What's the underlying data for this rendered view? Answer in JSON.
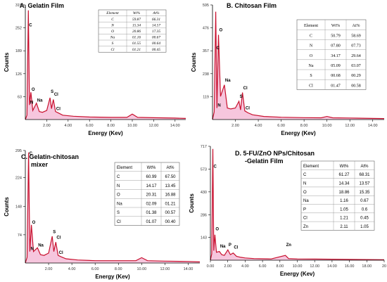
{
  "chart_data": [
    {
      "type": "line",
      "panel_label": "A.",
      "title": "Gelatin  Film",
      "xlabel": "Energy (Kev)",
      "ylabel": "Counts",
      "xlim": [
        0,
        15
      ],
      "ylim": [
        0,
        315
      ],
      "x_ticks": [
        "2.00",
        "4.00",
        "6.00",
        "8.00",
        "10.00",
        "12.00",
        "14.00"
      ],
      "y_ticks": [
        "63",
        "126",
        "189",
        "252",
        "315"
      ],
      "peak_labels": [
        {
          "label": "C",
          "x": 0.28,
          "y": 252
        },
        {
          "label": "N",
          "x": 0.39,
          "y": 40
        },
        {
          "label": "O",
          "x": 0.52,
          "y": 75
        },
        {
          "label": "Na",
          "x": 1.04,
          "y": 45
        },
        {
          "label": "S",
          "x": 2.31,
          "y": 70
        },
        {
          "label": "Cl",
          "x": 2.62,
          "y": 62
        },
        {
          "label": "Cl",
          "x": 2.82,
          "y": 22
        }
      ],
      "series": [
        {
          "x": [
            0.0,
            0.15,
            0.28,
            0.39,
            0.52,
            0.7,
            1.04,
            1.3,
            1.6,
            2.0,
            2.31,
            2.45,
            2.62,
            2.82,
            3.1,
            3.5,
            4.5,
            6.0,
            8.0,
            9.5,
            10.0,
            10.5,
            12.0,
            14.0,
            15.0
          ],
          "values": [
            0,
            12,
            300,
            40,
            75,
            25,
            45,
            22,
            20,
            25,
            60,
            30,
            55,
            22,
            18,
            12,
            9,
            7,
            6,
            6,
            15,
            6,
            5,
            4,
            3
          ]
        }
      ],
      "table": {
        "headers": [
          "Element",
          "Wt%",
          "At%"
        ],
        "rows": [
          [
            "C",
            "59.87",
            "66.31"
          ],
          [
            "N",
            "15.34",
            "14.57"
          ],
          [
            "O",
            "20.86",
            "17.35"
          ],
          [
            "Na",
            "01.16",
            "00.67"
          ],
          [
            "S",
            "01.55",
            "00.64"
          ],
          [
            "Cl",
            "01.21",
            "00.45"
          ]
        ]
      }
    },
    {
      "type": "line",
      "panel_label": "B.",
      "title": "Chitosan Film",
      "xlabel": "Energy (Kev)",
      "ylabel": "Counts",
      "xlim": [
        0,
        15
      ],
      "ylim": [
        0,
        595
      ],
      "x_ticks": [
        "2.00",
        "4.00",
        "6.00",
        "8.00",
        "10.00",
        "12.00",
        "14.00"
      ],
      "y_ticks": [
        "119",
        "238",
        "357",
        "476",
        "595"
      ],
      "peak_labels": [
        {
          "label": "C",
          "x": 0.28,
          "y": 357
        },
        {
          "label": "N",
          "x": 0.39,
          "y": 60
        },
        {
          "label": "O",
          "x": 0.52,
          "y": 450
        },
        {
          "label": "Na",
          "x": 1.04,
          "y": 190
        },
        {
          "label": "S",
          "x": 2.31,
          "y": 105
        },
        {
          "label": "Cl",
          "x": 2.62,
          "y": 150
        },
        {
          "label": "Cl",
          "x": 2.82,
          "y": 45
        }
      ],
      "series": [
        {
          "x": [
            0.0,
            0.15,
            0.28,
            0.39,
            0.52,
            0.7,
            1.04,
            1.3,
            1.6,
            2.0,
            2.31,
            2.45,
            2.62,
            2.82,
            3.1,
            3.5,
            4.5,
            6.0,
            8.0,
            9.5,
            10.0,
            10.5,
            12.0,
            14.0,
            15.0
          ],
          "values": [
            0,
            40,
            560,
            60,
            440,
            120,
            180,
            60,
            55,
            60,
            95,
            50,
            140,
            45,
            35,
            25,
            16,
            12,
            10,
            9,
            16,
            9,
            8,
            6,
            5
          ]
        }
      ],
      "table": {
        "headers": [
          "Element",
          "Wt%",
          "At%"
        ],
        "rows": [
          [
            "C",
            "50.79",
            "58.69"
          ],
          [
            "N",
            "07.80",
            "07.73"
          ],
          [
            "O",
            "34.17",
            "29.64"
          ],
          [
            "Na",
            "05.09",
            "03.07"
          ],
          [
            "S",
            "00.68",
            "00.29"
          ],
          [
            "Cl",
            "01.47",
            "00.58"
          ]
        ]
      }
    },
    {
      "type": "line",
      "panel_label": "C.",
      "title": "Gelatin-chitosan\nmixer",
      "xlabel": "Energy (Kev)",
      "ylabel": "Counts",
      "xlim": [
        0,
        15
      ],
      "ylim": [
        0,
        295
      ],
      "x_ticks": [
        "2.00",
        "4.00",
        "6.00",
        "8.00",
        "10.00",
        "12.00",
        "14.00"
      ],
      "y_ticks": [
        "74",
        "148",
        "224",
        "295"
      ],
      "peak_labels": [
        {
          "label": "C",
          "x": 0.28,
          "y": 280
        },
        {
          "label": "N",
          "x": 0.39,
          "y": 30
        },
        {
          "label": "O",
          "x": 0.52,
          "y": 100
        },
        {
          "label": "Na",
          "x": 1.04,
          "y": 40
        },
        {
          "label": "S",
          "x": 2.31,
          "y": 75
        },
        {
          "label": "Cl",
          "x": 2.62,
          "y": 60
        },
        {
          "label": "Cl",
          "x": 2.82,
          "y": 20
        }
      ],
      "series": [
        {
          "x": [
            0.0,
            0.15,
            0.28,
            0.39,
            0.52,
            0.7,
            1.04,
            1.3,
            1.6,
            2.0,
            2.31,
            2.45,
            2.62,
            2.82,
            3.1,
            3.5,
            4.5,
            6.0,
            8.0,
            9.5,
            10.0,
            10.5,
            12.0,
            14.0,
            15.0
          ],
          "values": [
            0,
            15,
            290,
            30,
            100,
            30,
            40,
            22,
            20,
            26,
            70,
            30,
            55,
            20,
            16,
            11,
            8,
            6,
            6,
            6,
            14,
            6,
            5,
            4,
            3
          ]
        }
      ],
      "table": {
        "headers": [
          "Element",
          "Wt%",
          "At%"
        ],
        "rows": [
          [
            "C",
            "60.99",
            "67.50"
          ],
          [
            "N",
            "14.17",
            "13.45"
          ],
          [
            "O",
            "20.31",
            "16.88"
          ],
          [
            "Na",
            "02.09",
            "01.21"
          ],
          [
            "S",
            "01.38",
            "00.57"
          ],
          [
            "Cl",
            "01.07",
            "00.40"
          ]
        ]
      }
    },
    {
      "type": "line",
      "panel_label": "D.",
      "title": "5-FU/ZnO NPs/Chitosan\n-Gelatin  Film",
      "xlabel": "Energy (Kev)",
      "ylabel": "Counts",
      "xlim": [
        0,
        20
      ],
      "ylim": [
        0,
        717
      ],
      "x_ticks": [
        "0.00",
        "2.00",
        "4.00",
        "6.00",
        "8.00",
        "10.00",
        "12.00",
        "14.00",
        "16.00",
        "18.00",
        "20"
      ],
      "y_ticks": [
        "143",
        "286",
        "430",
        "573",
        "717"
      ],
      "peak_labels": [
        {
          "label": "C",
          "x": 0.28,
          "y": 573
        },
        {
          "label": "O",
          "x": 0.52,
          "y": 180
        },
        {
          "label": "Na",
          "x": 1.04,
          "y": 70
        },
        {
          "label": "P",
          "x": 2.01,
          "y": 80
        },
        {
          "label": "Cl",
          "x": 2.62,
          "y": 65
        },
        {
          "label": "Zn",
          "x": 8.63,
          "y": 80
        }
      ],
      "series": [
        {
          "x": [
            0.0,
            0.15,
            0.28,
            0.39,
            0.52,
            0.7,
            1.04,
            1.3,
            1.6,
            2.01,
            2.3,
            2.62,
            3.0,
            3.5,
            4.0,
            5.0,
            7.0,
            8.63,
            9.0,
            10.0,
            12.0,
            14.0,
            16.0,
            18.0,
            20.0
          ],
          "values": [
            0,
            40,
            700,
            60,
            160,
            50,
            55,
            35,
            30,
            65,
            35,
            45,
            25,
            18,
            14,
            10,
            8,
            30,
            10,
            8,
            7,
            6,
            5,
            4,
            3
          ]
        }
      ],
      "table": {
        "headers": [
          "Element",
          "Wt%",
          "At%"
        ],
        "rows": [
          [
            "C",
            "61.27",
            "68.31"
          ],
          [
            "N",
            "14.34",
            "13.57"
          ],
          [
            "O",
            "18.86",
            "15.35"
          ],
          [
            "Na",
            "1.16",
            "0.67"
          ],
          [
            "P",
            "1.05",
            "0.6"
          ],
          [
            "Cl",
            "1.21",
            "0.45"
          ],
          [
            "Zn",
            "2.11",
            "1.05"
          ]
        ]
      }
    }
  ],
  "colors": {
    "spectrum": "#c8102e",
    "fill": "#f6c6dd",
    "axis": "#000000",
    "title": "#000000"
  }
}
